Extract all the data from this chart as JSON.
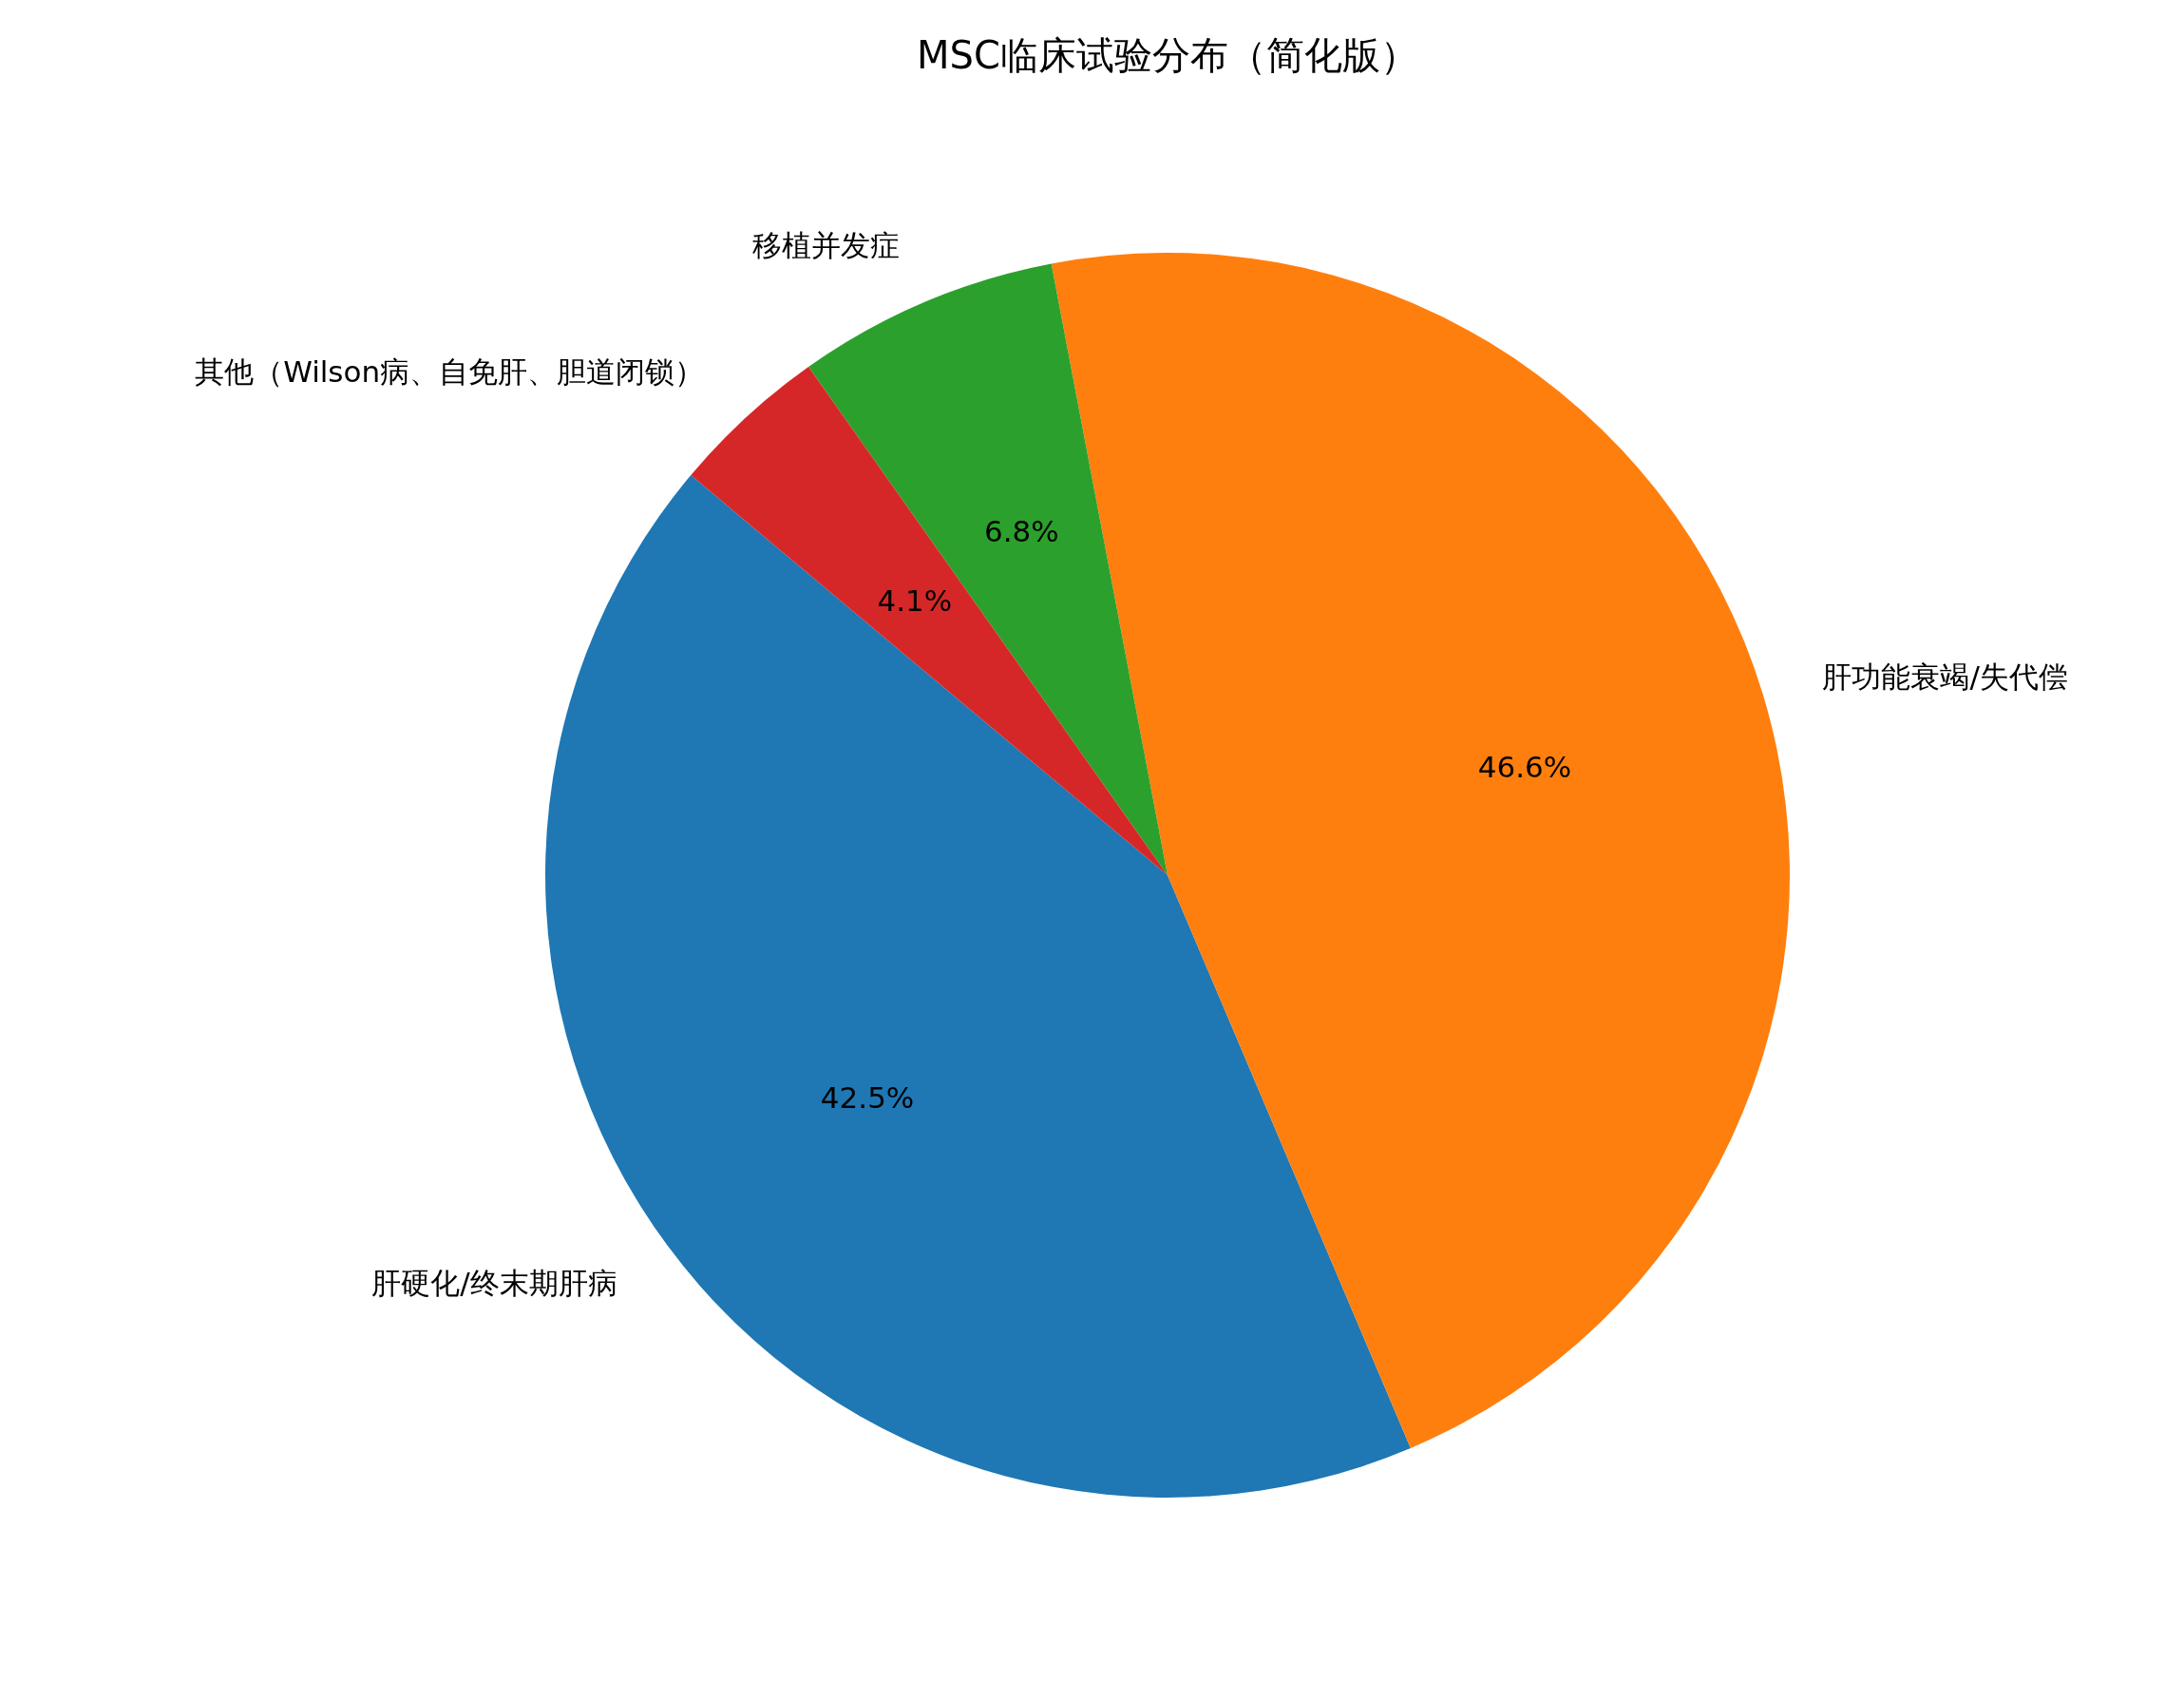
{
  "chart_data": {
    "type": "pie",
    "title": "MSC临床试验分布（简化版）",
    "categories": [
      "肝硬化/终末期肝病",
      "肝功能衰竭/失代偿",
      "移植并发症",
      "其他（Wilson病、自免肝、胆道闭锁）"
    ],
    "values": [
      42.5,
      46.6,
      6.8,
      4.1
    ],
    "colors": [
      "#1f77b4",
      "#ff7f0e",
      "#2ca02c",
      "#d62728"
    ],
    "value_labels": [
      "42.5%",
      "46.6%",
      "6.8%",
      "4.1%"
    ]
  }
}
